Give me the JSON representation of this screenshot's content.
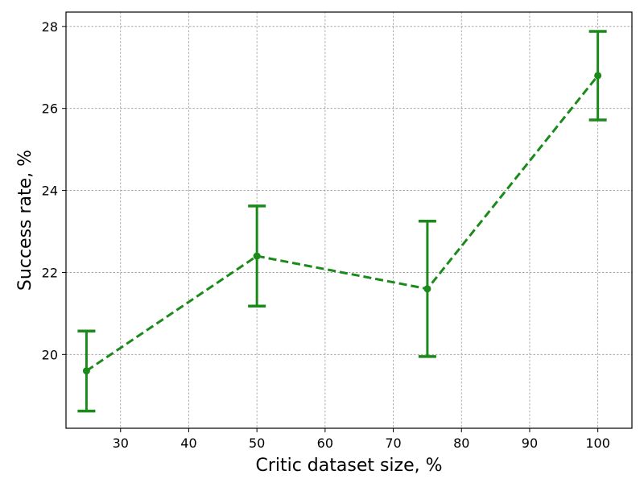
{
  "chart_data": {
    "type": "line",
    "title": "",
    "xlabel": "Critic dataset size, %",
    "ylabel": "Success rate, %",
    "xlim": [
      22,
      105
    ],
    "ylim": [
      18.2,
      28.35
    ],
    "xticks": [
      30,
      40,
      50,
      60,
      70,
      80,
      90,
      100
    ],
    "yticks": [
      20,
      22,
      24,
      26,
      28
    ],
    "grid": true,
    "series": [
      {
        "x": [
          25,
          50,
          75,
          100
        ],
        "y": [
          19.6,
          22.4,
          21.6,
          26.8
        ],
        "yerr_low": [
          18.62,
          21.18,
          19.95,
          25.72
        ],
        "yerr_high": [
          20.57,
          23.62,
          23.25,
          27.88
        ],
        "color": "#1a8a1a",
        "linestyle": "dashed",
        "marker": "circle"
      }
    ]
  }
}
